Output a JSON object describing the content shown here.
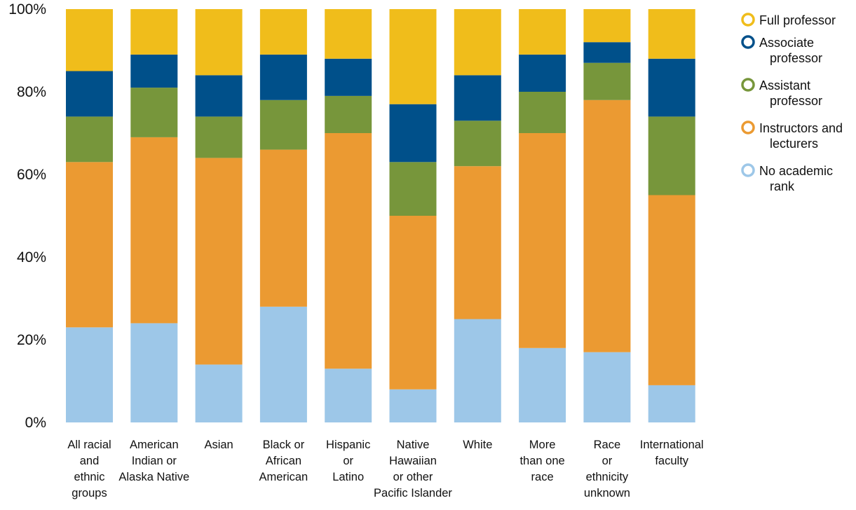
{
  "chart_data": {
    "type": "bar",
    "stacked": true,
    "percent": true,
    "title": "",
    "xlabel": "",
    "ylabel": "",
    "ylim": [
      0,
      100
    ],
    "y_ticks": [
      "0%",
      "20%",
      "40%",
      "60%",
      "80%",
      "100%"
    ],
    "grid": false,
    "legend": "right",
    "categories": [
      [
        "All racial",
        "and",
        "ethnic",
        "groups"
      ],
      [
        "American",
        "Indian or",
        "Alaska Native"
      ],
      [
        "Asian"
      ],
      [
        "Black or",
        "African",
        "American"
      ],
      [
        "Hispanic",
        "or",
        "Latino"
      ],
      [
        "Native",
        "Hawaiian",
        "or other",
        "Pacific Islander"
      ],
      [
        "White"
      ],
      [
        "More",
        "than one",
        "race"
      ],
      [
        "Race",
        "or",
        "ethnicity",
        "unknown"
      ],
      [
        "International",
        "faculty"
      ]
    ],
    "series": [
      {
        "name": "No academic rank",
        "legend_lines": [
          "No academic",
          "rank"
        ],
        "color": "#9dc7e8",
        "values": [
          23,
          24,
          14,
          28,
          13,
          8,
          25,
          18,
          17,
          9
        ]
      },
      {
        "name": "Instructors and lecturers",
        "legend_lines": [
          "Instructors and",
          "lecturers"
        ],
        "color": "#eb9a32",
        "values": [
          40,
          45,
          50,
          38,
          57,
          42,
          37,
          52,
          61,
          46
        ]
      },
      {
        "name": "Assistant professor",
        "legend_lines": [
          "Assistant",
          "professor"
        ],
        "color": "#77963b",
        "values": [
          11,
          12,
          10,
          12,
          9,
          13,
          11,
          10,
          9,
          19
        ]
      },
      {
        "name": "Associate professor",
        "legend_lines": [
          "Associate",
          "professor"
        ],
        "color": "#00508a",
        "values": [
          11,
          8,
          10,
          11,
          9,
          14,
          11,
          9,
          5,
          14
        ]
      },
      {
        "name": "Full professor",
        "legend_lines": [
          "Full professor"
        ],
        "color": "#f0bd1b",
        "values": [
          15,
          11,
          16,
          11,
          12,
          23,
          16,
          11,
          8,
          12
        ]
      }
    ]
  }
}
